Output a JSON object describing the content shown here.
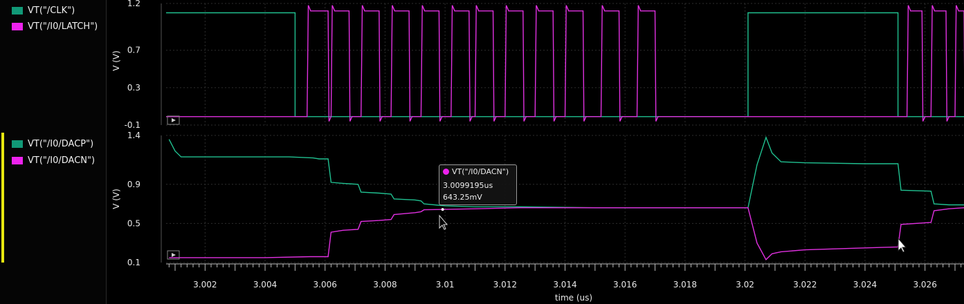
{
  "legend": {
    "panel1": [
      {
        "label": "VT(\"/CLK\")",
        "color": "#119977"
      },
      {
        "label": "VT(\"/I0/LATCH\")",
        "color": "#ee22ee"
      }
    ],
    "panel2": [
      {
        "label": "VT(\"/I0/DACP\")",
        "color": "#119977"
      },
      {
        "label": "VT(\"/I0/DACN\")",
        "color": "#ee22ee"
      }
    ]
  },
  "colors": {
    "clk": "#20c090",
    "latch": "#e030e0",
    "dacp": "#20c090",
    "dacn": "#e030e0",
    "marker": "#e8e80f",
    "grid": "#2e2e2e"
  },
  "tooltip": {
    "signal": "VT(\"/I0/DACN\")",
    "time": "3.0099195us",
    "value": "643.25mV"
  },
  "chart_data": [
    {
      "type": "line",
      "xlabel": "time (us)",
      "ylabel": "V (V)",
      "xlim": [
        3.0007,
        3.0273
      ],
      "ylim": [
        -0.1,
        1.2
      ],
      "yticks": [
        "1.2",
        "0.7",
        "0.3",
        "-0.1"
      ],
      "ytick_values": [
        1.2,
        0.7,
        0.3,
        -0.1
      ],
      "series": [
        {
          "name": "VT(\"/CLK\")",
          "kind": "step",
          "points": [
            [
              3.0007,
              1.1
            ],
            [
              3.005,
              1.1
            ],
            [
              3.005,
              -0.01
            ],
            [
              3.0201,
              -0.01
            ],
            [
              3.0201,
              1.1
            ],
            [
              3.0251,
              1.1
            ],
            [
              3.0251,
              -0.01
            ],
            [
              3.0273,
              -0.01
            ]
          ]
        },
        {
          "name": "VT(\"/I0/LATCH\")",
          "kind": "pulses",
          "low": -0.01,
          "high": 1.12,
          "pulses": [
            [
              3.0054,
              3.0061
            ],
            [
              3.0062,
              3.0068
            ],
            [
              3.0072,
              3.0078
            ],
            [
              3.0082,
              3.0088
            ],
            [
              3.0092,
              3.0098
            ],
            [
              3.0102,
              3.0108
            ],
            [
              3.011,
              3.0116
            ],
            [
              3.012,
              3.0126
            ],
            [
              3.013,
              3.0136
            ],
            [
              3.014,
              3.0146
            ],
            [
              3.0152,
              3.0158
            ],
            [
              3.0164,
              3.017
            ],
            [
              3.0254,
              3.0259
            ],
            [
              3.0262,
              3.0267
            ],
            [
              3.027,
              3.0273
            ]
          ]
        }
      ]
    },
    {
      "type": "line",
      "xlabel": "time (us)",
      "ylabel": "V (V)",
      "xlim": [
        3.0007,
        3.0273
      ],
      "ylim": [
        0.1,
        1.4
      ],
      "yticks": [
        "1.4",
        "0.9",
        "0.5",
        "0.1"
      ],
      "ytick_values": [
        1.4,
        0.9,
        0.5,
        0.1
      ],
      "xticks": [
        "3.002",
        "3.004",
        "3.006",
        "3.008",
        "3.01",
        "3.012",
        "3.014",
        "3.016",
        "3.018",
        "3.02",
        "3.022",
        "3.024",
        "3.026"
      ],
      "xtick_values": [
        3.002,
        3.004,
        3.006,
        3.008,
        3.01,
        3.012,
        3.014,
        3.016,
        3.018,
        3.02,
        3.022,
        3.024,
        3.026
      ],
      "series": [
        {
          "name": "VT(\"/I0/DACP\")",
          "points": [
            [
              3.0008,
              1.36
            ],
            [
              3.001,
              1.24
            ],
            [
              3.0012,
              1.18
            ],
            [
              3.002,
              1.18
            ],
            [
              3.003,
              1.18
            ],
            [
              3.0048,
              1.18
            ],
            [
              3.0056,
              1.17
            ],
            [
              3.0058,
              1.16
            ],
            [
              3.0061,
              1.16
            ],
            [
              3.0062,
              0.92
            ],
            [
              3.0066,
              0.91
            ],
            [
              3.0071,
              0.9
            ],
            [
              3.0072,
              0.82
            ],
            [
              3.0078,
              0.81
            ],
            [
              3.0082,
              0.8
            ],
            [
              3.0083,
              0.75
            ],
            [
              3.009,
              0.74
            ],
            [
              3.0092,
              0.73
            ],
            [
              3.0093,
              0.7
            ],
            [
              3.01,
              0.68
            ],
            [
              3.011,
              0.67
            ],
            [
              3.0125,
              0.67
            ],
            [
              3.015,
              0.66
            ],
            [
              3.017,
              0.66
            ],
            [
              3.0195,
              0.66
            ],
            [
              3.0201,
              0.66
            ],
            [
              3.0204,
              1.1
            ],
            [
              3.0207,
              1.38
            ],
            [
              3.0209,
              1.22
            ],
            [
              3.0212,
              1.13
            ],
            [
              3.022,
              1.12
            ],
            [
              3.024,
              1.11
            ],
            [
              3.0251,
              1.11
            ],
            [
              3.0252,
              0.84
            ],
            [
              3.0262,
              0.83
            ],
            [
              3.0263,
              0.7
            ],
            [
              3.0268,
              0.69
            ],
            [
              3.0273,
              0.69
            ]
          ]
        },
        {
          "name": "VT(\"/I0/DACN\")",
          "points": [
            [
              3.0008,
              0.15
            ],
            [
              3.002,
              0.15
            ],
            [
              3.004,
              0.15
            ],
            [
              3.0055,
              0.16
            ],
            [
              3.0061,
              0.16
            ],
            [
              3.0062,
              0.41
            ],
            [
              3.0066,
              0.43
            ],
            [
              3.0071,
              0.44
            ],
            [
              3.0072,
              0.52
            ],
            [
              3.0078,
              0.53
            ],
            [
              3.0082,
              0.54
            ],
            [
              3.0083,
              0.59
            ],
            [
              3.009,
              0.61
            ],
            [
              3.0092,
              0.62
            ],
            [
              3.0093,
              0.64
            ],
            [
              3.011,
              0.65
            ],
            [
              3.0125,
              0.66
            ],
            [
              3.015,
              0.66
            ],
            [
              3.017,
              0.66
            ],
            [
              3.0195,
              0.66
            ],
            [
              3.0201,
              0.66
            ],
            [
              3.0204,
              0.3
            ],
            [
              3.0207,
              0.13
            ],
            [
              3.0209,
              0.19
            ],
            [
              3.0212,
              0.21
            ],
            [
              3.022,
              0.23
            ],
            [
              3.024,
              0.25
            ],
            [
              3.0251,
              0.26
            ],
            [
              3.0252,
              0.49
            ],
            [
              3.0262,
              0.51
            ],
            [
              3.0263,
              0.63
            ],
            [
              3.0268,
              0.65
            ],
            [
              3.0273,
              0.66
            ]
          ]
        }
      ]
    }
  ]
}
